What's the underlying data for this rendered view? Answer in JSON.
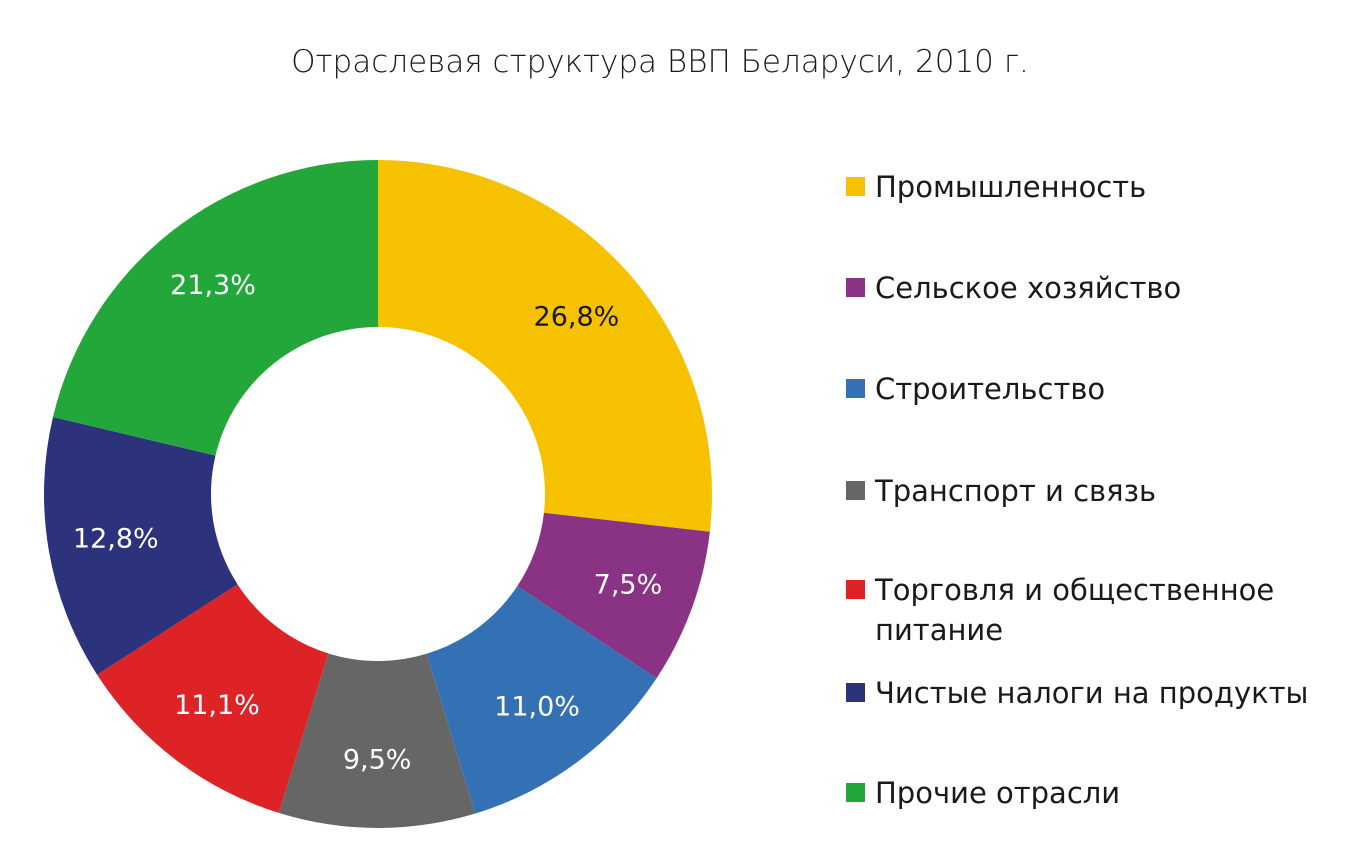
{
  "chart_data": {
    "type": "pie",
    "style": "donut",
    "title": "Отраслевая структура ВВП Беларуси, 2010 г.",
    "legend_position": "right",
    "unit": "%",
    "slices": [
      {
        "name": "Промышленность",
        "value": 26.8,
        "label": "26,8%",
        "color": "#F6C200",
        "label_color": "#1a1a1a"
      },
      {
        "name": "Сельское хозяйство",
        "value": 7.5,
        "label": "7,5%",
        "color": "#8A3384",
        "label_color": "#ffffff"
      },
      {
        "name": "Строительство",
        "value": 11.0,
        "label": "11,0%",
        "color": "#3371B4",
        "label_color": "#ffffff"
      },
      {
        "name": "Транспорт и связь",
        "value": 9.5,
        "label": "9,5%",
        "color": "#666666",
        "label_color": "#ffffff"
      },
      {
        "name": "Торговля и общественное питание",
        "value": 11.1,
        "label": "11,1%",
        "color": "#DD2326",
        "label_color": "#ffffff"
      },
      {
        "name": "Чистые налоги на продукты",
        "value": 12.8,
        "label": "12,8%",
        "color": "#2D327C",
        "label_color": "#ffffff"
      },
      {
        "name": "Прочие отрасли",
        "value": 21.3,
        "label": "21,3%",
        "color": "#24A73A",
        "label_color": "#ffffff"
      }
    ]
  }
}
